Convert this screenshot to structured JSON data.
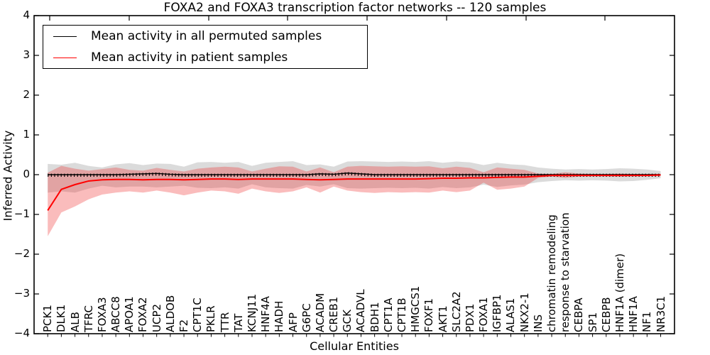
{
  "title": "FOXA2 and FOXA3 transcription factor networks -- 120 samples",
  "axes": {
    "ylabel": "Inferred Activity",
    "xlabel": "Cellular Entities",
    "ylim": [
      -4,
      4
    ],
    "yticks": [
      4,
      3,
      2,
      1,
      0,
      -1,
      -2,
      -3,
      -4
    ],
    "grid": false
  },
  "legend": {
    "position": "upper left",
    "items": [
      {
        "label": "Mean activity in all permuted samples",
        "color": "#000000"
      },
      {
        "label": "Mean activity in patient samples",
        "color": "#ff0000"
      }
    ]
  },
  "chart_data": {
    "type": "line",
    "title": "FOXA2 and FOXA3 transcription factor networks -- 120 samples",
    "xlabel": "Cellular Entities",
    "ylabel": "Inferred Activity",
    "ylim": [
      -4,
      4
    ],
    "legend_position": "upper left",
    "categories": [
      "PCK1",
      "DLK1",
      "ALB",
      "TFRC",
      "FOXA3",
      "ABCC8",
      "APOA1",
      "FOXA2",
      "UCP2",
      "ALDOB",
      "F2",
      "CPT1C",
      "PKLR",
      "TTR",
      "TAT",
      "KCNJ11",
      "HNF4A",
      "HADH",
      "AFP",
      "G6PC",
      "ACADM",
      "CREB1",
      "GCK",
      "ACADVL",
      "BDH1",
      "CPT1A",
      "CPT1B",
      "HMGCS1",
      "FOXF1",
      "AKT1",
      "SLC2A2",
      "PDX1",
      "FOXA1",
      "IGFBP1",
      "ALAS1",
      "NKX2-1",
      "INS",
      "chromatin remodeling",
      "response to starvation",
      "CEBPA",
      "SP1",
      "CEBPB",
      "HNF1A (dimer)",
      "HNF1A",
      "NF1",
      "NR3C1"
    ],
    "series": [
      {
        "name": "Mean activity in all permuted samples",
        "color": "#000000",
        "values": [
          0,
          0,
          0,
          0,
          0,
          0,
          0.01,
          0.02,
          0.03,
          0.01,
          0,
          0,
          0,
          0,
          0,
          0,
          0,
          0,
          0,
          0,
          0.02,
          0.01,
          0.04,
          0.02,
          0,
          0,
          0,
          0,
          0,
          0,
          0,
          0,
          0,
          0,
          0,
          0,
          0,
          0,
          0,
          0,
          0,
          0,
          0,
          0,
          0,
          0
        ]
      },
      {
        "name": "Mean activity in patient samples",
        "color": "#ff0000",
        "values": [
          -0.9,
          -0.37,
          -0.25,
          -0.16,
          -0.13,
          -0.12,
          -0.12,
          -0.13,
          -0.12,
          -0.12,
          -0.13,
          -0.12,
          -0.11,
          -0.11,
          -0.12,
          -0.11,
          -0.11,
          -0.11,
          -0.11,
          -0.12,
          -0.13,
          -0.12,
          -0.11,
          -0.11,
          -0.11,
          -0.11,
          -0.11,
          -0.11,
          -0.1,
          -0.09,
          -0.09,
          -0.08,
          -0.08,
          -0.07,
          -0.06,
          -0.06,
          -0.04,
          -0.02,
          -0.02,
          -0.02,
          -0.02,
          -0.02,
          -0.02,
          -0.02,
          -0.02,
          -0.01
        ]
      }
    ],
    "bands": [
      {
        "name": "permuted-samples-range",
        "color": "#999999",
        "opacity": 0.35,
        "upper": [
          0.27,
          0.25,
          0.3,
          0.22,
          0.18,
          0.26,
          0.29,
          0.24,
          0.28,
          0.27,
          0.2,
          0.31,
          0.32,
          0.3,
          0.32,
          0.22,
          0.3,
          0.32,
          0.34,
          0.24,
          0.26,
          0.2,
          0.33,
          0.34,
          0.33,
          0.32,
          0.33,
          0.32,
          0.34,
          0.3,
          0.33,
          0.31,
          0.24,
          0.3,
          0.26,
          0.24,
          0.18,
          0.15,
          0.13,
          0.14,
          0.13,
          0.14,
          0.16,
          0.15,
          0.13,
          0.09
        ],
        "lower": [
          -0.45,
          -0.42,
          -0.45,
          -0.35,
          -0.28,
          -0.32,
          -0.3,
          -0.3,
          -0.32,
          -0.3,
          -0.28,
          -0.33,
          -0.34,
          -0.32,
          -0.35,
          -0.24,
          -0.32,
          -0.34,
          -0.35,
          -0.26,
          -0.3,
          -0.24,
          -0.34,
          -0.35,
          -0.34,
          -0.33,
          -0.34,
          -0.33,
          -0.35,
          -0.31,
          -0.34,
          -0.32,
          -0.25,
          -0.31,
          -0.27,
          -0.25,
          -0.19,
          -0.16,
          -0.14,
          -0.15,
          -0.14,
          -0.15,
          -0.17,
          -0.16,
          -0.13,
          -0.09
        ]
      },
      {
        "name": "patient-samples-range",
        "color": "#ee2222",
        "opacity": 0.3,
        "upper": [
          0.05,
          0.22,
          0.15,
          0.1,
          0.14,
          0.18,
          0.12,
          0.1,
          0.17,
          0.12,
          0.08,
          0.15,
          0.18,
          0.2,
          0.18,
          0.08,
          0.15,
          0.21,
          0.2,
          0.08,
          0.18,
          0.06,
          0.2,
          0.22,
          0.21,
          0.2,
          0.21,
          0.2,
          0.21,
          0.16,
          0.2,
          0.17,
          0.06,
          0.18,
          0.15,
          0.12,
          0.03,
          0.02,
          0.06,
          0.03,
          0.02,
          0.02,
          0.03,
          0.02,
          0.02,
          0.02
        ],
        "lower": [
          -1.55,
          -0.95,
          -0.8,
          -0.62,
          -0.5,
          -0.45,
          -0.42,
          -0.45,
          -0.4,
          -0.45,
          -0.52,
          -0.45,
          -0.4,
          -0.42,
          -0.48,
          -0.35,
          -0.42,
          -0.46,
          -0.42,
          -0.32,
          -0.45,
          -0.3,
          -0.4,
          -0.44,
          -0.46,
          -0.44,
          -0.45,
          -0.44,
          -0.45,
          -0.4,
          -0.44,
          -0.4,
          -0.2,
          -0.38,
          -0.35,
          -0.3,
          -0.08,
          -0.05,
          -0.08,
          -0.05,
          -0.04,
          -0.04,
          -0.05,
          -0.04,
          -0.03,
          -0.03
        ]
      }
    ]
  }
}
